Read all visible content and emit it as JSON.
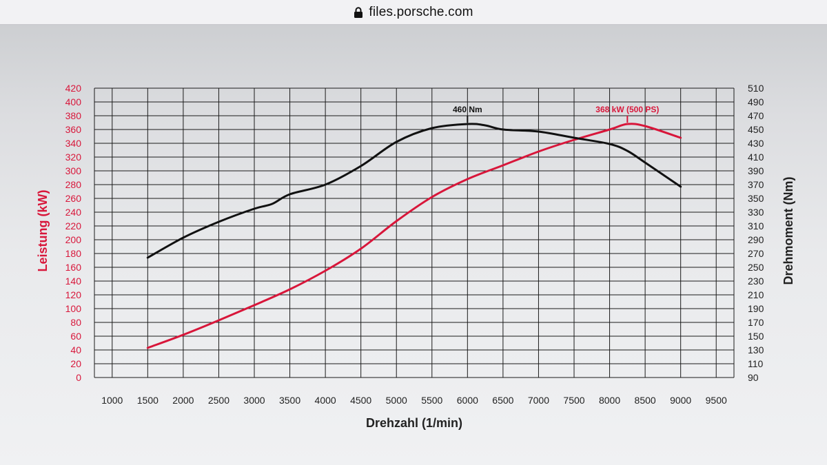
{
  "browser": {
    "host": "files.porsche.com",
    "icon": "lock-icon"
  },
  "chart_data": {
    "type": "line",
    "title": "",
    "xlabel": "Drehzahl (1/min)",
    "ylabel_left": "Leistung (kW)",
    "ylabel_right": "Drehmoment (Nm)",
    "xlim": [
      750,
      9750
    ],
    "ylim_left": [
      0,
      420
    ],
    "ylim_right": [
      90,
      510
    ],
    "x_ticks": [
      1000,
      1500,
      2000,
      2500,
      3000,
      3500,
      4000,
      4500,
      5000,
      5500,
      6000,
      6500,
      7000,
      7500,
      8000,
      8500,
      9000,
      9500
    ],
    "y_left_ticks": [
      0,
      20,
      40,
      60,
      80,
      100,
      120,
      140,
      160,
      180,
      200,
      220,
      240,
      260,
      280,
      300,
      320,
      340,
      360,
      380,
      400,
      420
    ],
    "y_right_ticks": [
      90,
      110,
      130,
      150,
      170,
      190,
      210,
      230,
      250,
      270,
      290,
      310,
      330,
      350,
      370,
      390,
      410,
      430,
      450,
      470,
      490,
      510
    ],
    "grid": true,
    "colors": {
      "power": "#d8163a",
      "torque": "#111111"
    },
    "series": [
      {
        "key": "power",
        "axis": "left",
        "x": [
          1500,
          2000,
          2500,
          3000,
          3500,
          4000,
          4500,
          5000,
          5500,
          6000,
          6500,
          7000,
          7500,
          8000,
          8250,
          8500,
          9000
        ],
        "values": [
          43,
          62,
          83,
          105,
          128,
          155,
          187,
          227,
          262,
          288,
          308,
          328,
          345,
          360,
          368,
          365,
          348
        ]
      },
      {
        "key": "torque",
        "axis": "right",
        "x": [
          1500,
          2000,
          2500,
          3000,
          3250,
          3500,
          4000,
          4500,
          5000,
          5500,
          6000,
          6250,
          6500,
          7000,
          7500,
          8000,
          8250,
          8500,
          9000
        ],
        "values": [
          264,
          293,
          316,
          335,
          342,
          356,
          370,
          397,
          432,
          452,
          458,
          456,
          450,
          447,
          438,
          429,
          419,
          402,
          367
        ]
      }
    ],
    "annotations": [
      {
        "text": "460 Nm",
        "series": "torque",
        "x": 6000,
        "y": 458
      },
      {
        "text": "368 kW (500 PS)",
        "series": "power",
        "x": 8250,
        "y": 368
      }
    ]
  }
}
